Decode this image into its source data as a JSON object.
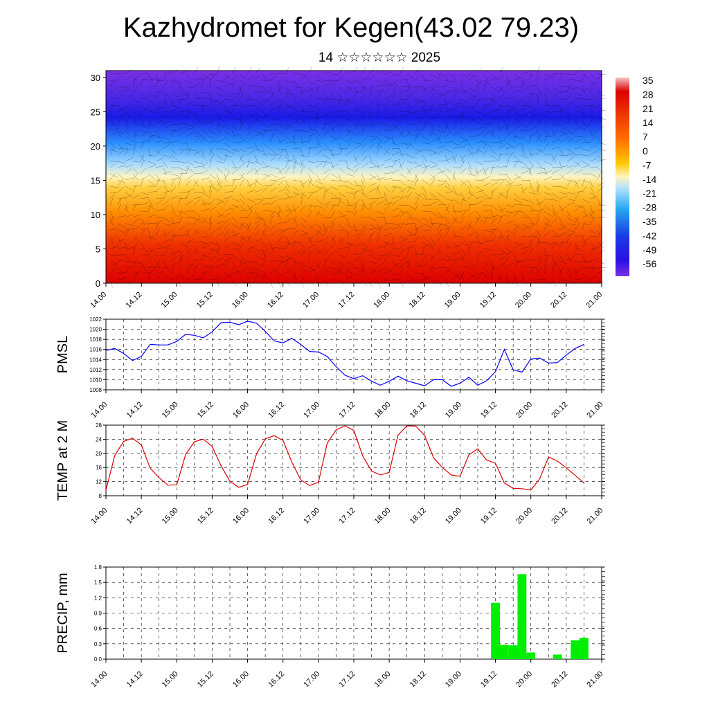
{
  "title": "Kazhydromet for Kegen(43.02 79.23)",
  "subtitle": "14 ☆☆☆☆☆☆ 2025",
  "time_ticks": [
    "14.00",
    "14.12",
    "15.00",
    "15.12",
    "16.00",
    "16.12",
    "17.00",
    "17.12",
    "18.00",
    "18.12",
    "19.00",
    "19.12",
    "20.00",
    "20.12",
    "21.00"
  ],
  "chart_data": [
    {
      "type": "heatmap",
      "description_label": "",
      "y_ticks": [
        "0",
        "5",
        "10",
        "15",
        "20",
        "25",
        "30"
      ],
      "ylim": [
        0,
        31
      ],
      "colorbar_labels": [
        "35",
        "28",
        "21",
        "14",
        "7",
        "0",
        "-7",
        "-14",
        "-21",
        "-28",
        "-35",
        "-42",
        "-49",
        "-56"
      ],
      "colors": {
        "hot": "#dd0000",
        "warm": "#ff8c00",
        "mild": "#ffd040",
        "cold": "#2a8fff",
        "freezing": "#1a1ae6",
        "stratosphere": "#7a30e6"
      }
    },
    {
      "type": "line",
      "ylabel": "PMSL",
      "ylim": [
        1008,
        1022
      ],
      "y_ticks": [
        "1008",
        "1010",
        "1012",
        "1014",
        "1016",
        "1018",
        "1020",
        "1022"
      ],
      "color": "#0000ff",
      "x_hours": [
        0,
        3,
        6,
        9,
        12,
        15,
        18,
        21,
        24,
        27,
        30,
        33,
        36,
        39,
        42,
        45,
        48,
        51,
        54,
        57,
        60,
        63,
        66,
        69,
        72,
        75,
        78,
        81,
        84,
        87,
        90,
        93,
        96,
        99,
        102,
        105,
        108,
        111,
        114,
        117,
        120,
        123,
        126,
        129,
        132,
        135,
        138,
        141,
        144,
        147,
        150,
        153,
        156,
        159,
        162
      ],
      "values": [
        1015.8,
        1016.2,
        1015.2,
        1013.8,
        1014.6,
        1017.0,
        1016.9,
        1016.9,
        1017.6,
        1019.0,
        1018.8,
        1018.3,
        1019.5,
        1021.3,
        1021.4,
        1020.9,
        1021.6,
        1021.2,
        1019.6,
        1017.7,
        1017.3,
        1018.2,
        1017.0,
        1015.6,
        1015.5,
        1014.6,
        1012.6,
        1010.9,
        1010.2,
        1010.8,
        1009.7,
        1008.9,
        1009.7,
        1010.7,
        1009.8,
        1009.3,
        1008.8,
        1010.0,
        1010.0,
        1008.7,
        1009.3,
        1010.5,
        1008.9,
        1009.8,
        1011.6,
        1016.0,
        1012.0,
        1011.5,
        1014.1,
        1014.3,
        1013.3,
        1013.4,
        1014.9,
        1016.2,
        1017.0
      ]
    },
    {
      "type": "line",
      "ylabel": "TEMP at 2 M",
      "ylim": [
        8,
        28
      ],
      "y_ticks": [
        "8",
        "12",
        "16",
        "20",
        "24",
        "28"
      ],
      "color": "#dd0000",
      "x_hours": [
        0,
        3,
        6,
        9,
        12,
        15,
        18,
        21,
        24,
        27,
        30,
        33,
        36,
        39,
        42,
        45,
        48,
        51,
        54,
        57,
        60,
        63,
        66,
        69,
        72,
        75,
        78,
        81,
        84,
        87,
        90,
        93,
        96,
        99,
        102,
        105,
        108,
        111,
        114,
        117,
        120,
        123,
        126,
        129,
        132,
        135,
        138,
        141,
        144,
        147,
        150,
        153,
        156,
        159,
        162
      ],
      "values": [
        9.6,
        19.4,
        23.4,
        24.3,
        22.4,
        15.8,
        13.1,
        11.0,
        11.1,
        19.7,
        23.3,
        24.0,
        22.0,
        16.5,
        12.1,
        10.4,
        11.2,
        19.8,
        24.1,
        25.0,
        23.7,
        17.5,
        12.5,
        10.9,
        11.8,
        22.9,
        26.6,
        27.8,
        26.5,
        19.3,
        15.0,
        13.9,
        14.6,
        25.2,
        27.8,
        27.7,
        25.1,
        18.8,
        16.0,
        13.9,
        13.5,
        19.6,
        21.3,
        18.1,
        17.2,
        11.6,
        10.1,
        10.0,
        9.6,
        12.8,
        19.0,
        17.8,
        15.9,
        13.8,
        11.6
      ]
    },
    {
      "type": "bar",
      "ylabel": "PRECIP, mm",
      "ylim": [
        0,
        1.8
      ],
      "y_ticks": [
        "0.0",
        "0.3",
        "0.6",
        "0.9",
        "1.2",
        "1.5",
        "1.8"
      ],
      "color": "#00ee00",
      "x_hours": [
        132,
        135,
        138,
        141,
        144,
        147,
        150,
        153,
        156,
        159,
        162
      ],
      "values": [
        1.1,
        0.28,
        0.27,
        1.66,
        0.13,
        0.0,
        0.0,
        0.09,
        0.0,
        0.37,
        0.42
      ]
    }
  ]
}
